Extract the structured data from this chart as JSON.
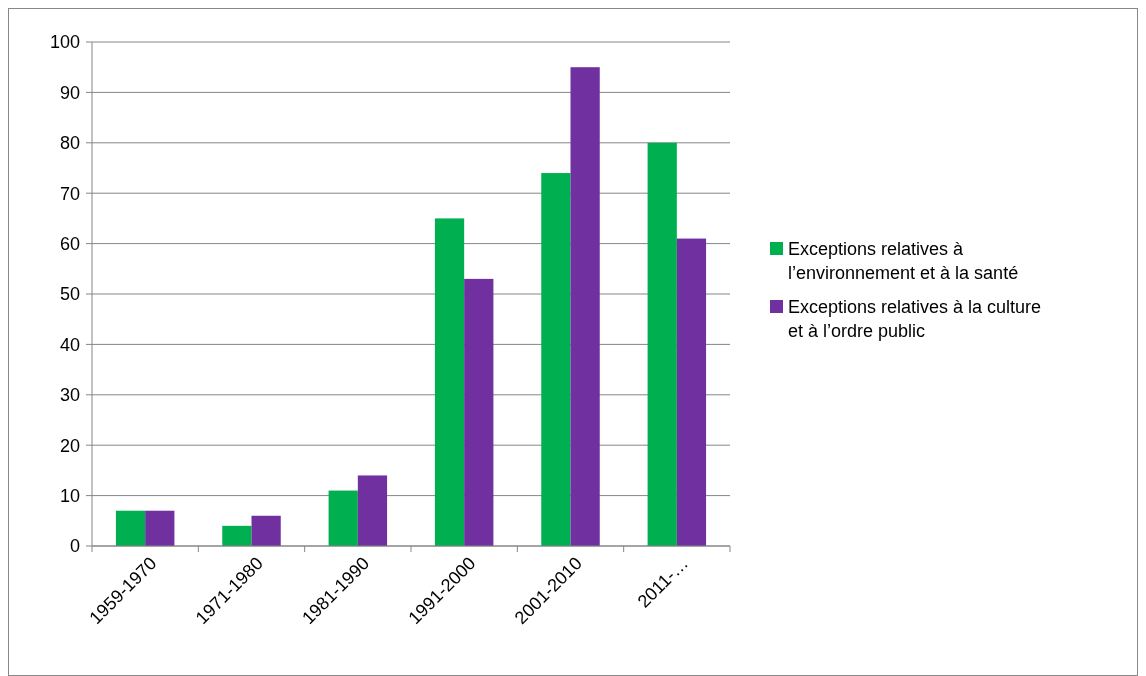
{
  "chart_data": {
    "type": "bar",
    "categories": [
      "1959-1970",
      "1971-1980",
      "1981-1990",
      "1991-2000",
      "2001-2010",
      "2011-…"
    ],
    "series": [
      {
        "name": "Exceptions relatives à l’environnement et à la santé",
        "color": "#00b050",
        "values": [
          7,
          4,
          11,
          65,
          74,
          80
        ]
      },
      {
        "name": "Exceptions relatives à la culture et à l’ordre public",
        "color": "#7030a0",
        "values": [
          7,
          6,
          14,
          53,
          95,
          61
        ]
      }
    ],
    "ylim": [
      0,
      100
    ],
    "yticks": [
      0,
      10,
      20,
      30,
      40,
      50,
      60,
      70,
      80,
      90,
      100
    ],
    "grid": "y",
    "legend": "right"
  }
}
